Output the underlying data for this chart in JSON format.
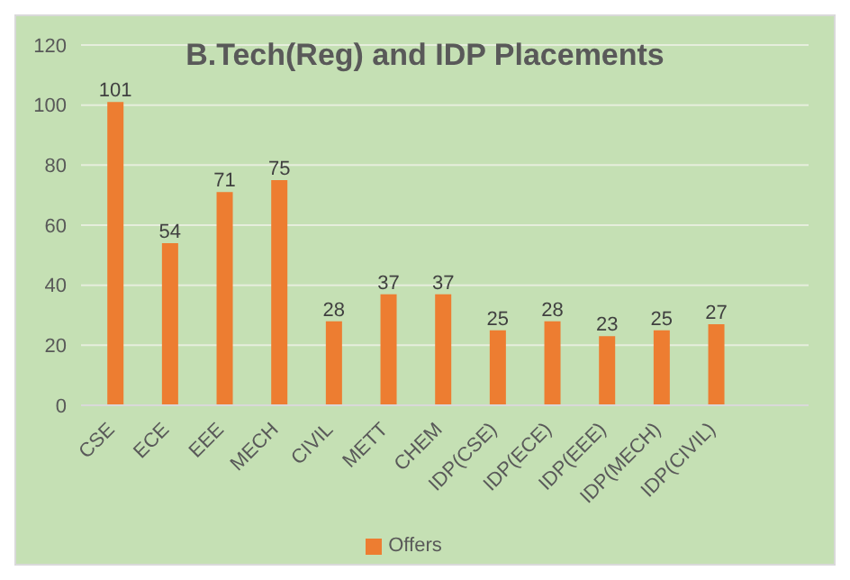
{
  "chart_data": {
    "type": "bar",
    "title": "B.Tech(Reg) and IDP Placements",
    "categories": [
      "CSE",
      "ECE",
      "EEE",
      "MECH",
      "CIVIL",
      "METT",
      "CHEM",
      "IDP(CSE)",
      "IDP(ECE)",
      "IDP(EEE)",
      "IDP(MECH)",
      "IDP(CIVIL)"
    ],
    "series": [
      {
        "name": "Offers",
        "color": "#ed7d31",
        "values": [
          101,
          54,
          71,
          75,
          28,
          37,
          37,
          25,
          28,
          23,
          25,
          27
        ]
      }
    ],
    "ylim": [
      0,
      120
    ],
    "yticks": [
      0,
      20,
      40,
      60,
      80,
      100,
      120
    ],
    "grid": "y",
    "legend": "bottom",
    "data_labels": true
  }
}
